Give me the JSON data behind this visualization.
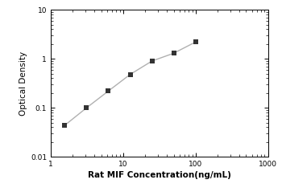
{
  "x": [
    1.563,
    3.125,
    6.25,
    12.5,
    25,
    50,
    100
  ],
  "y": [
    0.044,
    0.1,
    0.22,
    0.48,
    0.9,
    1.3,
    2.2
  ],
  "xlabel": "Rat MIF Concentration(ng/mL)",
  "ylabel": "Optical Density",
  "xlim": [
    1,
    1000
  ],
  "ylim": [
    0.01,
    10
  ],
  "line_color": "#b0b0b0",
  "marker_color": "#333333",
  "marker": "s",
  "marker_size": 4,
  "background_color": "#ffffff",
  "xlabel_fontsize": 7.5,
  "ylabel_fontsize": 7.5,
  "tick_fontsize": 6.5
}
